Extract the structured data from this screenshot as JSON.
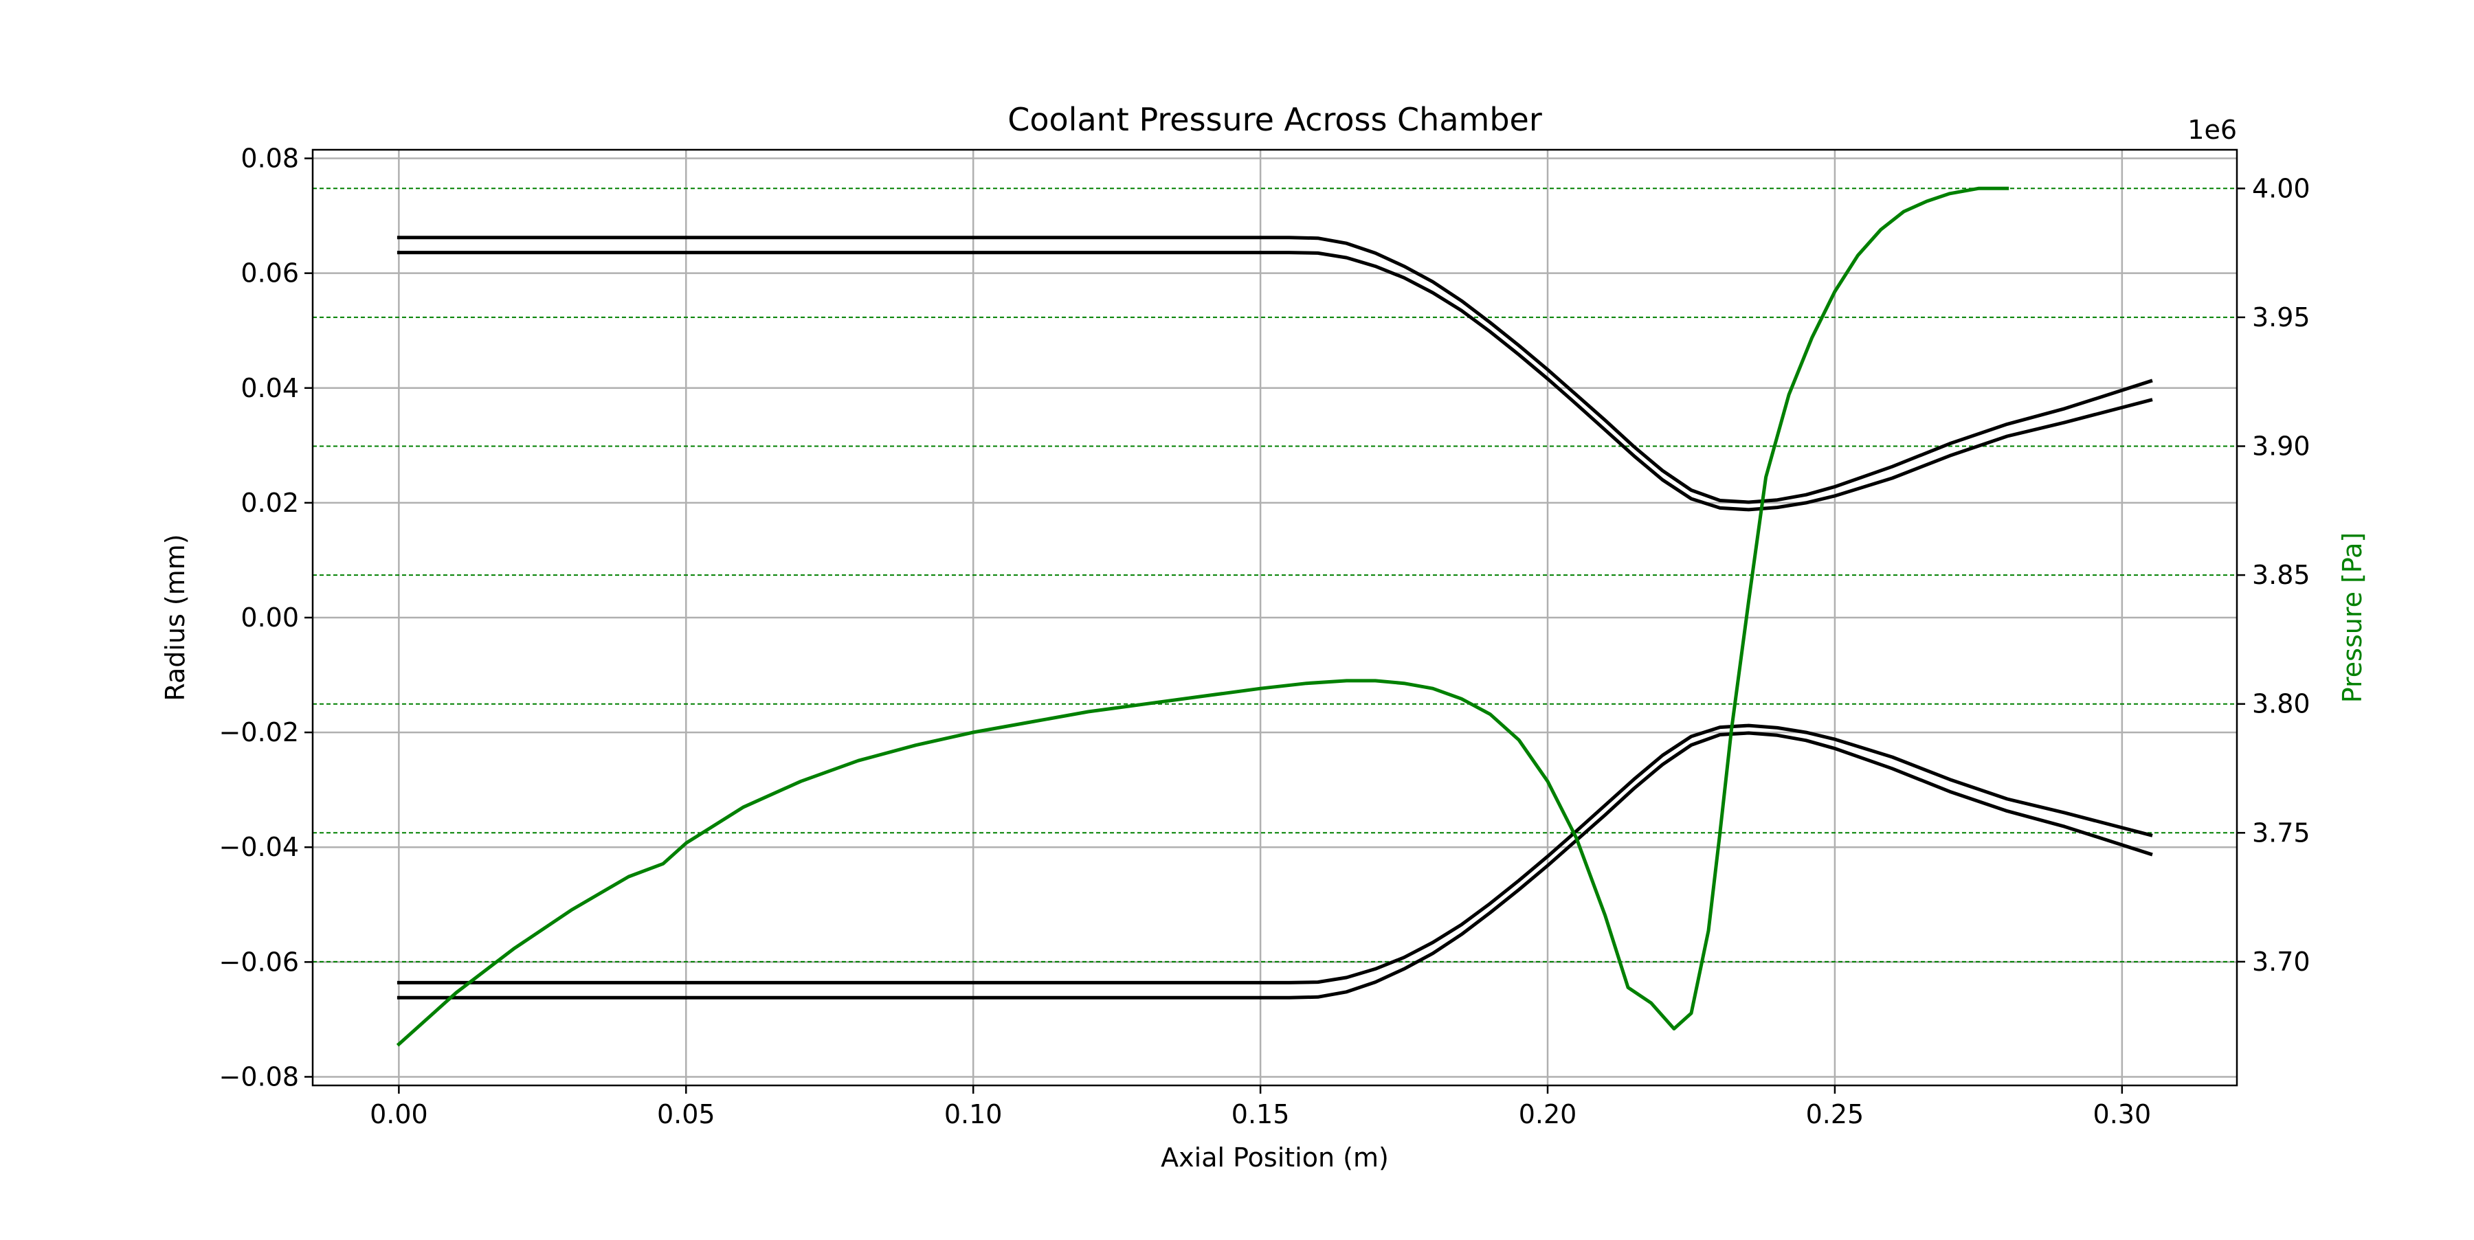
{
  "chart_data": {
    "type": "line",
    "title": "Coolant Pressure Across Chamber",
    "xlabel": "Axial Position (m)",
    "ylabel": "Radius (mm)",
    "y2label": "Pressure [Pa]",
    "y2_offset_label": "1e6",
    "xlim": [
      -0.015,
      0.32
    ],
    "ylim": [
      -0.0815,
      0.0815
    ],
    "y2lim": [
      3.652,
      4.015
    ],
    "xticks": [
      0.0,
      0.05,
      0.1,
      0.15,
      0.2,
      0.25,
      0.3
    ],
    "xtick_labels": [
      "0.00",
      "0.05",
      "0.10",
      "0.15",
      "0.20",
      "0.25",
      "0.30"
    ],
    "yticks": [
      0.08,
      0.06,
      0.04,
      0.02,
      0.0,
      -0.02,
      -0.04,
      -0.06,
      -0.08
    ],
    "ytick_labels": [
      "0.08",
      "0.06",
      "0.04",
      "0.02",
      "0.00",
      "−0.02",
      "−0.04",
      "−0.06",
      "−0.08"
    ],
    "y2ticks": [
      4.0,
      3.95,
      3.9,
      3.85,
      3.8,
      3.75,
      3.7
    ],
    "y2tick_labels": [
      "4.00",
      "3.95",
      "3.90",
      "3.85",
      "3.80",
      "3.75",
      "3.70"
    ],
    "grid_primary": true,
    "grid_secondary": "dashed",
    "colors": {
      "contour": "#000000",
      "pressure": "#008000",
      "grid": "#b0b0b0",
      "grid2": "#008000"
    },
    "series": [
      {
        "axis": "left",
        "color": "#000000",
        "x": [
          0,
          0.05,
          0.1,
          0.155,
          0.16,
          0.165,
          0.17,
          0.175,
          0.18,
          0.185,
          0.19,
          0.195,
          0.2,
          0.205,
          0.21,
          0.215,
          0.22,
          0.225,
          0.23,
          0.235,
          0.24,
          0.245,
          0.25,
          0.26,
          0.27,
          0.28,
          0.29,
          0.305
        ],
        "values": [
          0.0662,
          0.0662,
          0.0662,
          0.0662,
          0.0661,
          0.0652,
          0.0635,
          0.0612,
          0.0585,
          0.0552,
          0.0514,
          0.0474,
          0.0432,
          0.0388,
          0.0344,
          0.0298,
          0.0256,
          0.0222,
          0.0204,
          0.0201,
          0.0205,
          0.0214,
          0.0228,
          0.0263,
          0.0303,
          0.0337,
          0.0364,
          0.0412
        ]
      },
      {
        "axis": "left",
        "color": "#000000",
        "x": [
          0,
          0.05,
          0.1,
          0.155,
          0.16,
          0.165,
          0.17,
          0.175,
          0.18,
          0.185,
          0.19,
          0.195,
          0.2,
          0.205,
          0.21,
          0.215,
          0.22,
          0.225,
          0.23,
          0.235,
          0.24,
          0.245,
          0.25,
          0.26,
          0.27,
          0.28,
          0.29,
          0.305
        ],
        "values": [
          0.0636,
          0.0636,
          0.0636,
          0.0636,
          0.0635,
          0.0627,
          0.0612,
          0.0592,
          0.0566,
          0.0535,
          0.0498,
          0.0458,
          0.0416,
          0.0372,
          0.0327,
          0.0282,
          0.024,
          0.0207,
          0.0191,
          0.0188,
          0.0192,
          0.02,
          0.0212,
          0.0243,
          0.0282,
          0.0316,
          0.034,
          0.0379
        ]
      },
      {
        "axis": "left",
        "color": "#000000",
        "x": [
          0,
          0.05,
          0.1,
          0.155,
          0.16,
          0.165,
          0.17,
          0.175,
          0.18,
          0.185,
          0.19,
          0.195,
          0.2,
          0.205,
          0.21,
          0.215,
          0.22,
          0.225,
          0.23,
          0.235,
          0.24,
          0.245,
          0.25,
          0.26,
          0.27,
          0.28,
          0.29,
          0.305
        ],
        "values": [
          -0.0636,
          -0.0636,
          -0.0636,
          -0.0636,
          -0.0635,
          -0.0627,
          -0.0612,
          -0.0592,
          -0.0566,
          -0.0535,
          -0.0498,
          -0.0458,
          -0.0416,
          -0.0372,
          -0.0327,
          -0.0282,
          -0.024,
          -0.0207,
          -0.0191,
          -0.0188,
          -0.0192,
          -0.02,
          -0.0212,
          -0.0243,
          -0.0282,
          -0.0316,
          -0.034,
          -0.0379
        ]
      },
      {
        "axis": "left",
        "color": "#000000",
        "x": [
          0,
          0.05,
          0.1,
          0.155,
          0.16,
          0.165,
          0.17,
          0.175,
          0.18,
          0.185,
          0.19,
          0.195,
          0.2,
          0.205,
          0.21,
          0.215,
          0.22,
          0.225,
          0.23,
          0.235,
          0.24,
          0.245,
          0.25,
          0.26,
          0.27,
          0.28,
          0.29,
          0.305
        ],
        "values": [
          -0.0662,
          -0.0662,
          -0.0662,
          -0.0662,
          -0.0661,
          -0.0652,
          -0.0635,
          -0.0612,
          -0.0585,
          -0.0552,
          -0.0514,
          -0.0474,
          -0.0432,
          -0.0388,
          -0.0344,
          -0.0298,
          -0.0256,
          -0.0222,
          -0.0204,
          -0.0201,
          -0.0205,
          -0.0214,
          -0.0228,
          -0.0263,
          -0.0303,
          -0.0337,
          -0.0364,
          -0.0412
        ]
      },
      {
        "axis": "right",
        "color": "#008000",
        "x": [
          0,
          0.01,
          0.02,
          0.03,
          0.04,
          0.046,
          0.05,
          0.06,
          0.07,
          0.08,
          0.09,
          0.1,
          0.11,
          0.12,
          0.13,
          0.14,
          0.15,
          0.158,
          0.165,
          0.17,
          0.175,
          0.18,
          0.185,
          0.19,
          0.195,
          0.2,
          0.205,
          0.21,
          0.214,
          0.218,
          0.222,
          0.225,
          0.228,
          0.23,
          0.232,
          0.235,
          0.238,
          0.242,
          0.246,
          0.25,
          0.254,
          0.258,
          0.262,
          0.266,
          0.27,
          0.275,
          0.28
        ],
        "values": [
          3.668,
          3.688,
          3.705,
          3.72,
          3.733,
          3.738,
          3.746,
          3.76,
          3.77,
          3.778,
          3.784,
          3.789,
          3.793,
          3.797,
          3.8,
          3.803,
          3.806,
          3.808,
          3.809,
          3.809,
          3.808,
          3.806,
          3.802,
          3.796,
          3.786,
          3.77,
          3.748,
          3.718,
          3.69,
          3.684,
          3.674,
          3.68,
          3.712,
          3.75,
          3.79,
          3.84,
          3.888,
          3.92,
          3.942,
          3.96,
          3.974,
          3.984,
          3.991,
          3.995,
          3.998,
          4.0,
          4.0
        ]
      }
    ]
  }
}
